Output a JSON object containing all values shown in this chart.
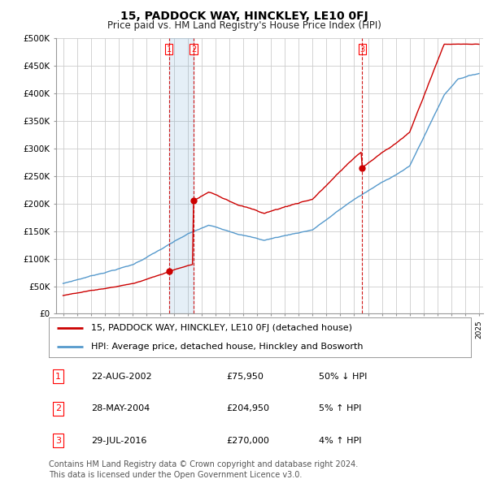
{
  "title": "15, PADDOCK WAY, HINCKLEY, LE10 0FJ",
  "subtitle": "Price paid vs. HM Land Registry's House Price Index (HPI)",
  "ylabel_ticks": [
    "£0",
    "£50K",
    "£100K",
    "£150K",
    "£200K",
    "£250K",
    "£300K",
    "£350K",
    "£400K",
    "£450K",
    "£500K"
  ],
  "ytick_values": [
    0,
    50000,
    100000,
    150000,
    200000,
    250000,
    300000,
    350000,
    400000,
    450000,
    500000
  ],
  "ylim": [
    0,
    500000
  ],
  "xlim_start": 1994.5,
  "xlim_end": 2025.3,
  "property_line_color": "#cc0000",
  "hpi_line_color": "#5599cc",
  "hpi_fill_color": "#ddeeff",
  "background_color": "#ffffff",
  "plot_bg_color": "#ffffff",
  "grid_color": "#cccccc",
  "transaction_vline_color": "#cc0000",
  "transactions": [
    {
      "num": 1,
      "date": "22-AUG-2002",
      "price": 75950,
      "price_str": "£75,950",
      "pct": "50%",
      "dir": "↓",
      "year": 2002.64
    },
    {
      "num": 2,
      "date": "28-MAY-2004",
      "price": 204950,
      "price_str": "£204,950",
      "pct": "5%",
      "dir": "↑",
      "year": 2004.41
    },
    {
      "num": 3,
      "date": "29-JUL-2016",
      "price": 270000,
      "price_str": "£270,000",
      "pct": "4%",
      "dir": "↑",
      "year": 2016.58
    }
  ],
  "legend_property": "15, PADDOCK WAY, HINCKLEY, LE10 0FJ (detached house)",
  "legend_hpi": "HPI: Average price, detached house, Hinckley and Bosworth",
  "footnote_line1": "Contains HM Land Registry data © Crown copyright and database right 2024.",
  "footnote_line2": "This data is licensed under the Open Government Licence v3.0.",
  "title_fontsize": 10,
  "subtitle_fontsize": 8.5,
  "tick_fontsize": 7.5,
  "legend_fontsize": 8,
  "table_fontsize": 8,
  "footnote_fontsize": 7
}
